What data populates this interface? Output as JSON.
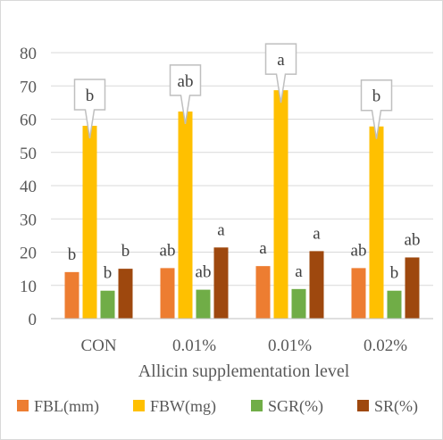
{
  "chart_data": {
    "type": "bar",
    "categories": [
      "CON",
      "0.01%",
      "0.01%",
      "0.02%"
    ],
    "series": [
      {
        "name": "FBL(mm)",
        "color": "#ED7D31",
        "values": [
          14.0,
          15.2,
          15.8,
          15.2
        ],
        "labels": [
          "b",
          "ab",
          "a",
          "ab"
        ]
      },
      {
        "name": "FBW(mg)",
        "color": "#FFC000",
        "values": [
          58.0,
          62.3,
          68.7,
          57.8
        ],
        "labels": [
          "b",
          "ab",
          "a",
          "b"
        ]
      },
      {
        "name": "SGR(%)",
        "color": "#70AD47",
        "values": [
          8.4,
          8.7,
          8.9,
          8.4
        ],
        "labels": [
          "b",
          "ab",
          "a",
          "b"
        ]
      },
      {
        "name": "SR(%)",
        "color": "#9E480E",
        "values": [
          15.0,
          21.4,
          20.3,
          18.4
        ],
        "labels": [
          "b",
          "a",
          "a",
          "ab"
        ]
      }
    ],
    "callout_series": "FBW(mg)",
    "xlabel": "Allicin supplementation level",
    "ylabel": "",
    "ylim": [
      0,
      80
    ],
    "yticks": [
      0,
      10,
      20,
      30,
      40,
      50,
      60,
      70,
      80
    ],
    "grid": true,
    "legend_position": "bottom"
  }
}
